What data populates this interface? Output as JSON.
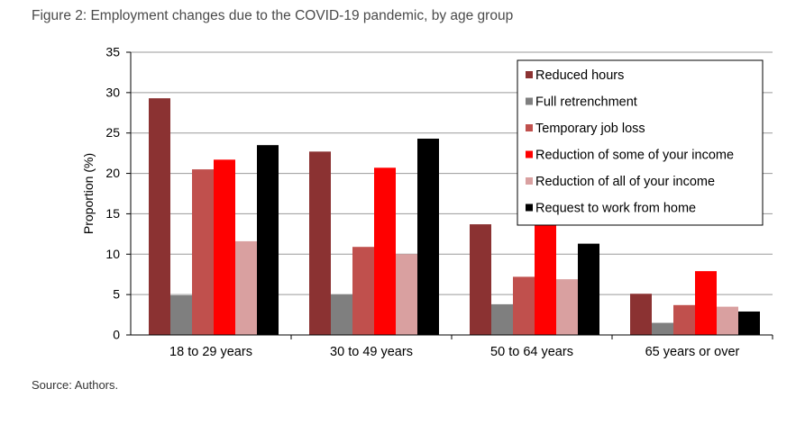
{
  "figure": {
    "title": "Figure 2: Employment changes due to the COVID-19 pandemic, by age group",
    "source": "Source: Authors."
  },
  "chart_data": {
    "type": "bar",
    "title": "",
    "xlabel": "",
    "ylabel": "Proportion (%)",
    "ylim": [
      0,
      35
    ],
    "yticks": [
      0,
      5,
      10,
      15,
      20,
      25,
      30,
      35
    ],
    "grid": true,
    "legend_position": "top-right",
    "categories": [
      "18 to 29 years",
      "30 to 49 years",
      "50 to 64 years",
      "65 years or over"
    ],
    "series": [
      {
        "name": "Reduced hours",
        "color": "#8b3232",
        "values": [
          29.3,
          22.7,
          13.7,
          5.1
        ]
      },
      {
        "name": "Full retrenchment",
        "color": "#7f7f7f",
        "values": [
          4.9,
          5.0,
          3.8,
          1.5
        ]
      },
      {
        "name": "Temporary job loss",
        "color": "#c0504d",
        "values": [
          20.5,
          10.9,
          7.2,
          3.7
        ]
      },
      {
        "name": "Reduction of some of your income",
        "color": "#ff0000",
        "values": [
          21.7,
          20.7,
          13.9,
          7.9
        ]
      },
      {
        "name": "Reduction of all of your income",
        "color": "#d9a0a0",
        "values": [
          11.6,
          10.0,
          6.9,
          3.5
        ]
      },
      {
        "name": "Request to work from home",
        "color": "#000000",
        "values": [
          23.5,
          24.3,
          11.3,
          2.9
        ]
      }
    ]
  }
}
